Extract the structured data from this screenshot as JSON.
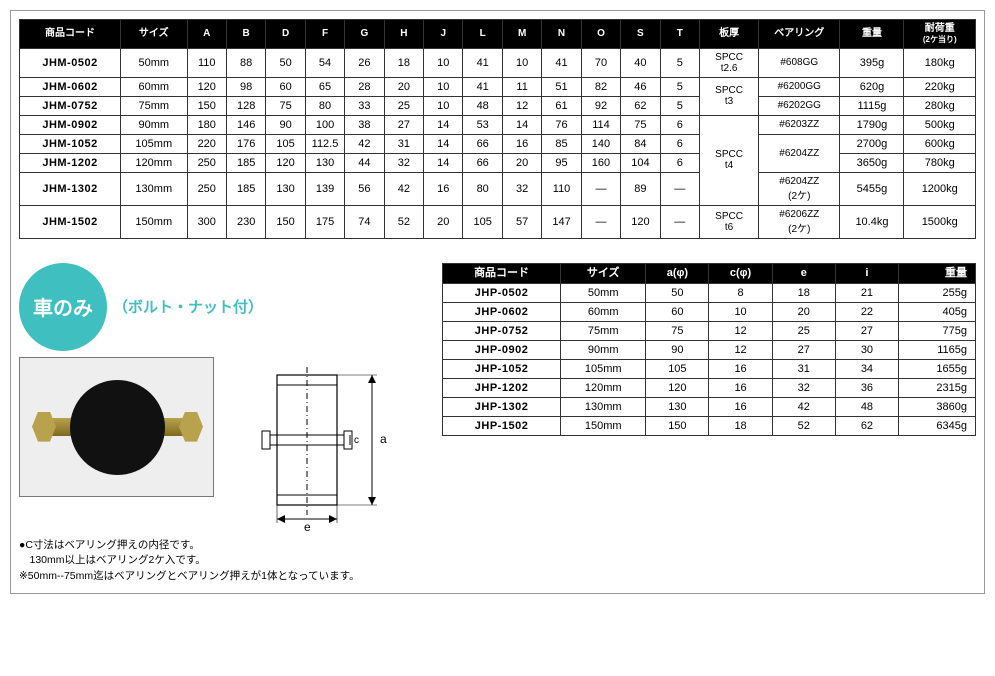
{
  "table1": {
    "headers": [
      "商品コード",
      "サイズ",
      "A",
      "B",
      "D",
      "F",
      "G",
      "H",
      "J",
      "L",
      "M",
      "N",
      "O",
      "S",
      "T",
      "板厚",
      "ベアリング",
      "重量",
      "耐荷重\n(2ケ当り)"
    ],
    "groups_plate": [
      {
        "start": 0,
        "span": 1,
        "text": "SPCC\nt2.6"
      },
      {
        "start": 1,
        "span": 2,
        "text": "SPCC\nt3"
      },
      {
        "start": 3,
        "span": 4,
        "text": "SPCC\nt4"
      },
      {
        "start": 7,
        "span": 1,
        "text": "SPCC\nt6"
      }
    ],
    "groups_bearing": [
      {
        "start": 0,
        "span": 1,
        "text": "#608GG"
      },
      {
        "start": 1,
        "span": 1,
        "text": "#6200GG"
      },
      {
        "start": 2,
        "span": 1,
        "text": "#6202GG"
      },
      {
        "start": 3,
        "span": 1,
        "text": "#6203ZZ"
      },
      {
        "start": 4,
        "span": 2,
        "text": "#6204ZZ"
      },
      {
        "start": 6,
        "span": 1,
        "text": "#6204ZZ\n(2ケ)"
      },
      {
        "start": 7,
        "span": 1,
        "text": "#6206ZZ\n(2ケ)"
      }
    ],
    "rows": [
      {
        "code": "JHM-0502",
        "size": "50mm",
        "A": "110",
        "B": "88",
        "D": "50",
        "F": "54",
        "G": "26",
        "H": "18",
        "J": "10",
        "L": "41",
        "M": "10",
        "N": "41",
        "O": "70",
        "S": "40",
        "T": "5",
        "weight": "395g",
        "load": "180kg"
      },
      {
        "code": "JHM-0602",
        "size": "60mm",
        "A": "120",
        "B": "98",
        "D": "60",
        "F": "65",
        "G": "28",
        "H": "20",
        "J": "10",
        "L": "41",
        "M": "11",
        "N": "51",
        "O": "82",
        "S": "46",
        "T": "5",
        "weight": "620g",
        "load": "220kg"
      },
      {
        "code": "JHM-0752",
        "size": "75mm",
        "A": "150",
        "B": "128",
        "D": "75",
        "F": "80",
        "G": "33",
        "H": "25",
        "J": "10",
        "L": "48",
        "M": "12",
        "N": "61",
        "O": "92",
        "S": "62",
        "T": "5",
        "weight": "1115g",
        "load": "280kg"
      },
      {
        "code": "JHM-0902",
        "size": "90mm",
        "A": "180",
        "B": "146",
        "D": "90",
        "F": "100",
        "G": "38",
        "H": "27",
        "J": "14",
        "L": "53",
        "M": "14",
        "N": "76",
        "O": "114",
        "S": "75",
        "T": "6",
        "weight": "1790g",
        "load": "500kg"
      },
      {
        "code": "JHM-1052",
        "size": "105mm",
        "A": "220",
        "B": "176",
        "D": "105",
        "F": "112.5",
        "G": "42",
        "H": "31",
        "J": "14",
        "L": "66",
        "M": "16",
        "N": "85",
        "O": "140",
        "S": "84",
        "T": "6",
        "weight": "2700g",
        "load": "600kg"
      },
      {
        "code": "JHM-1202",
        "size": "120mm",
        "A": "250",
        "B": "185",
        "D": "120",
        "F": "130",
        "G": "44",
        "H": "32",
        "J": "14",
        "L": "66",
        "M": "20",
        "N": "95",
        "O": "160",
        "S": "104",
        "T": "6",
        "weight": "3650g",
        "load": "780kg"
      },
      {
        "code": "JHM-1302",
        "size": "130mm",
        "A": "250",
        "B": "185",
        "D": "130",
        "F": "139",
        "G": "56",
        "H": "42",
        "J": "16",
        "L": "80",
        "M": "32",
        "N": "110",
        "O": "—",
        "S": "89",
        "T": "—",
        "weight": "5455g",
        "load": "1200kg"
      },
      {
        "code": "JHM-1502",
        "size": "150mm",
        "A": "300",
        "B": "230",
        "D": "150",
        "F": "175",
        "G": "74",
        "H": "52",
        "J": "20",
        "L": "105",
        "M": "57",
        "N": "147",
        "O": "—",
        "S": "120",
        "T": "—",
        "weight": "10.4kg",
        "load": "1500kg"
      }
    ]
  },
  "heading": {
    "circle": "車のみ",
    "subtitle": "（ボルト・ナット付）"
  },
  "diagram_labels": {
    "a": "a",
    "c": "c",
    "e": "e"
  },
  "notes": [
    "●C寸法はベアリング押えの内径です。",
    "　130mm以上はベアリング2ケ入です。",
    "※50mm--75mm迄はベアリングとベアリング押えが1体となっています。"
  ],
  "table2": {
    "headers": [
      "商品コード",
      "サイズ",
      "a(φ)",
      "c(φ)",
      "e",
      "i",
      "重量"
    ],
    "rows": [
      {
        "code": "JHP-0502",
        "size": "50mm",
        "a": "50",
        "c": "8",
        "e": "18",
        "i": "21",
        "weight": "255g"
      },
      {
        "code": "JHP-0602",
        "size": "60mm",
        "a": "60",
        "c": "10",
        "e": "20",
        "i": "22",
        "weight": "405g"
      },
      {
        "code": "JHP-0752",
        "size": "75mm",
        "a": "75",
        "c": "12",
        "e": "25",
        "i": "27",
        "weight": "775g"
      },
      {
        "code": "JHP-0902",
        "size": "90mm",
        "a": "90",
        "c": "12",
        "e": "27",
        "i": "30",
        "weight": "1165g"
      },
      {
        "code": "JHP-1052",
        "size": "105mm",
        "a": "105",
        "c": "16",
        "e": "31",
        "i": "34",
        "weight": "1655g"
      },
      {
        "code": "JHP-1202",
        "size": "120mm",
        "a": "120",
        "c": "16",
        "e": "32",
        "i": "36",
        "weight": "2315g"
      },
      {
        "code": "JHP-1302",
        "size": "130mm",
        "a": "130",
        "c": "16",
        "e": "42",
        "i": "48",
        "weight": "3860g"
      },
      {
        "code": "JHP-1502",
        "size": "150mm",
        "a": "150",
        "c": "18",
        "e": "52",
        "i": "62",
        "weight": "6345g"
      }
    ]
  },
  "colors": {
    "accent": "#3fbfbf",
    "header_bg": "#000000",
    "header_fg": "#ffffff",
    "border": "#333333"
  }
}
